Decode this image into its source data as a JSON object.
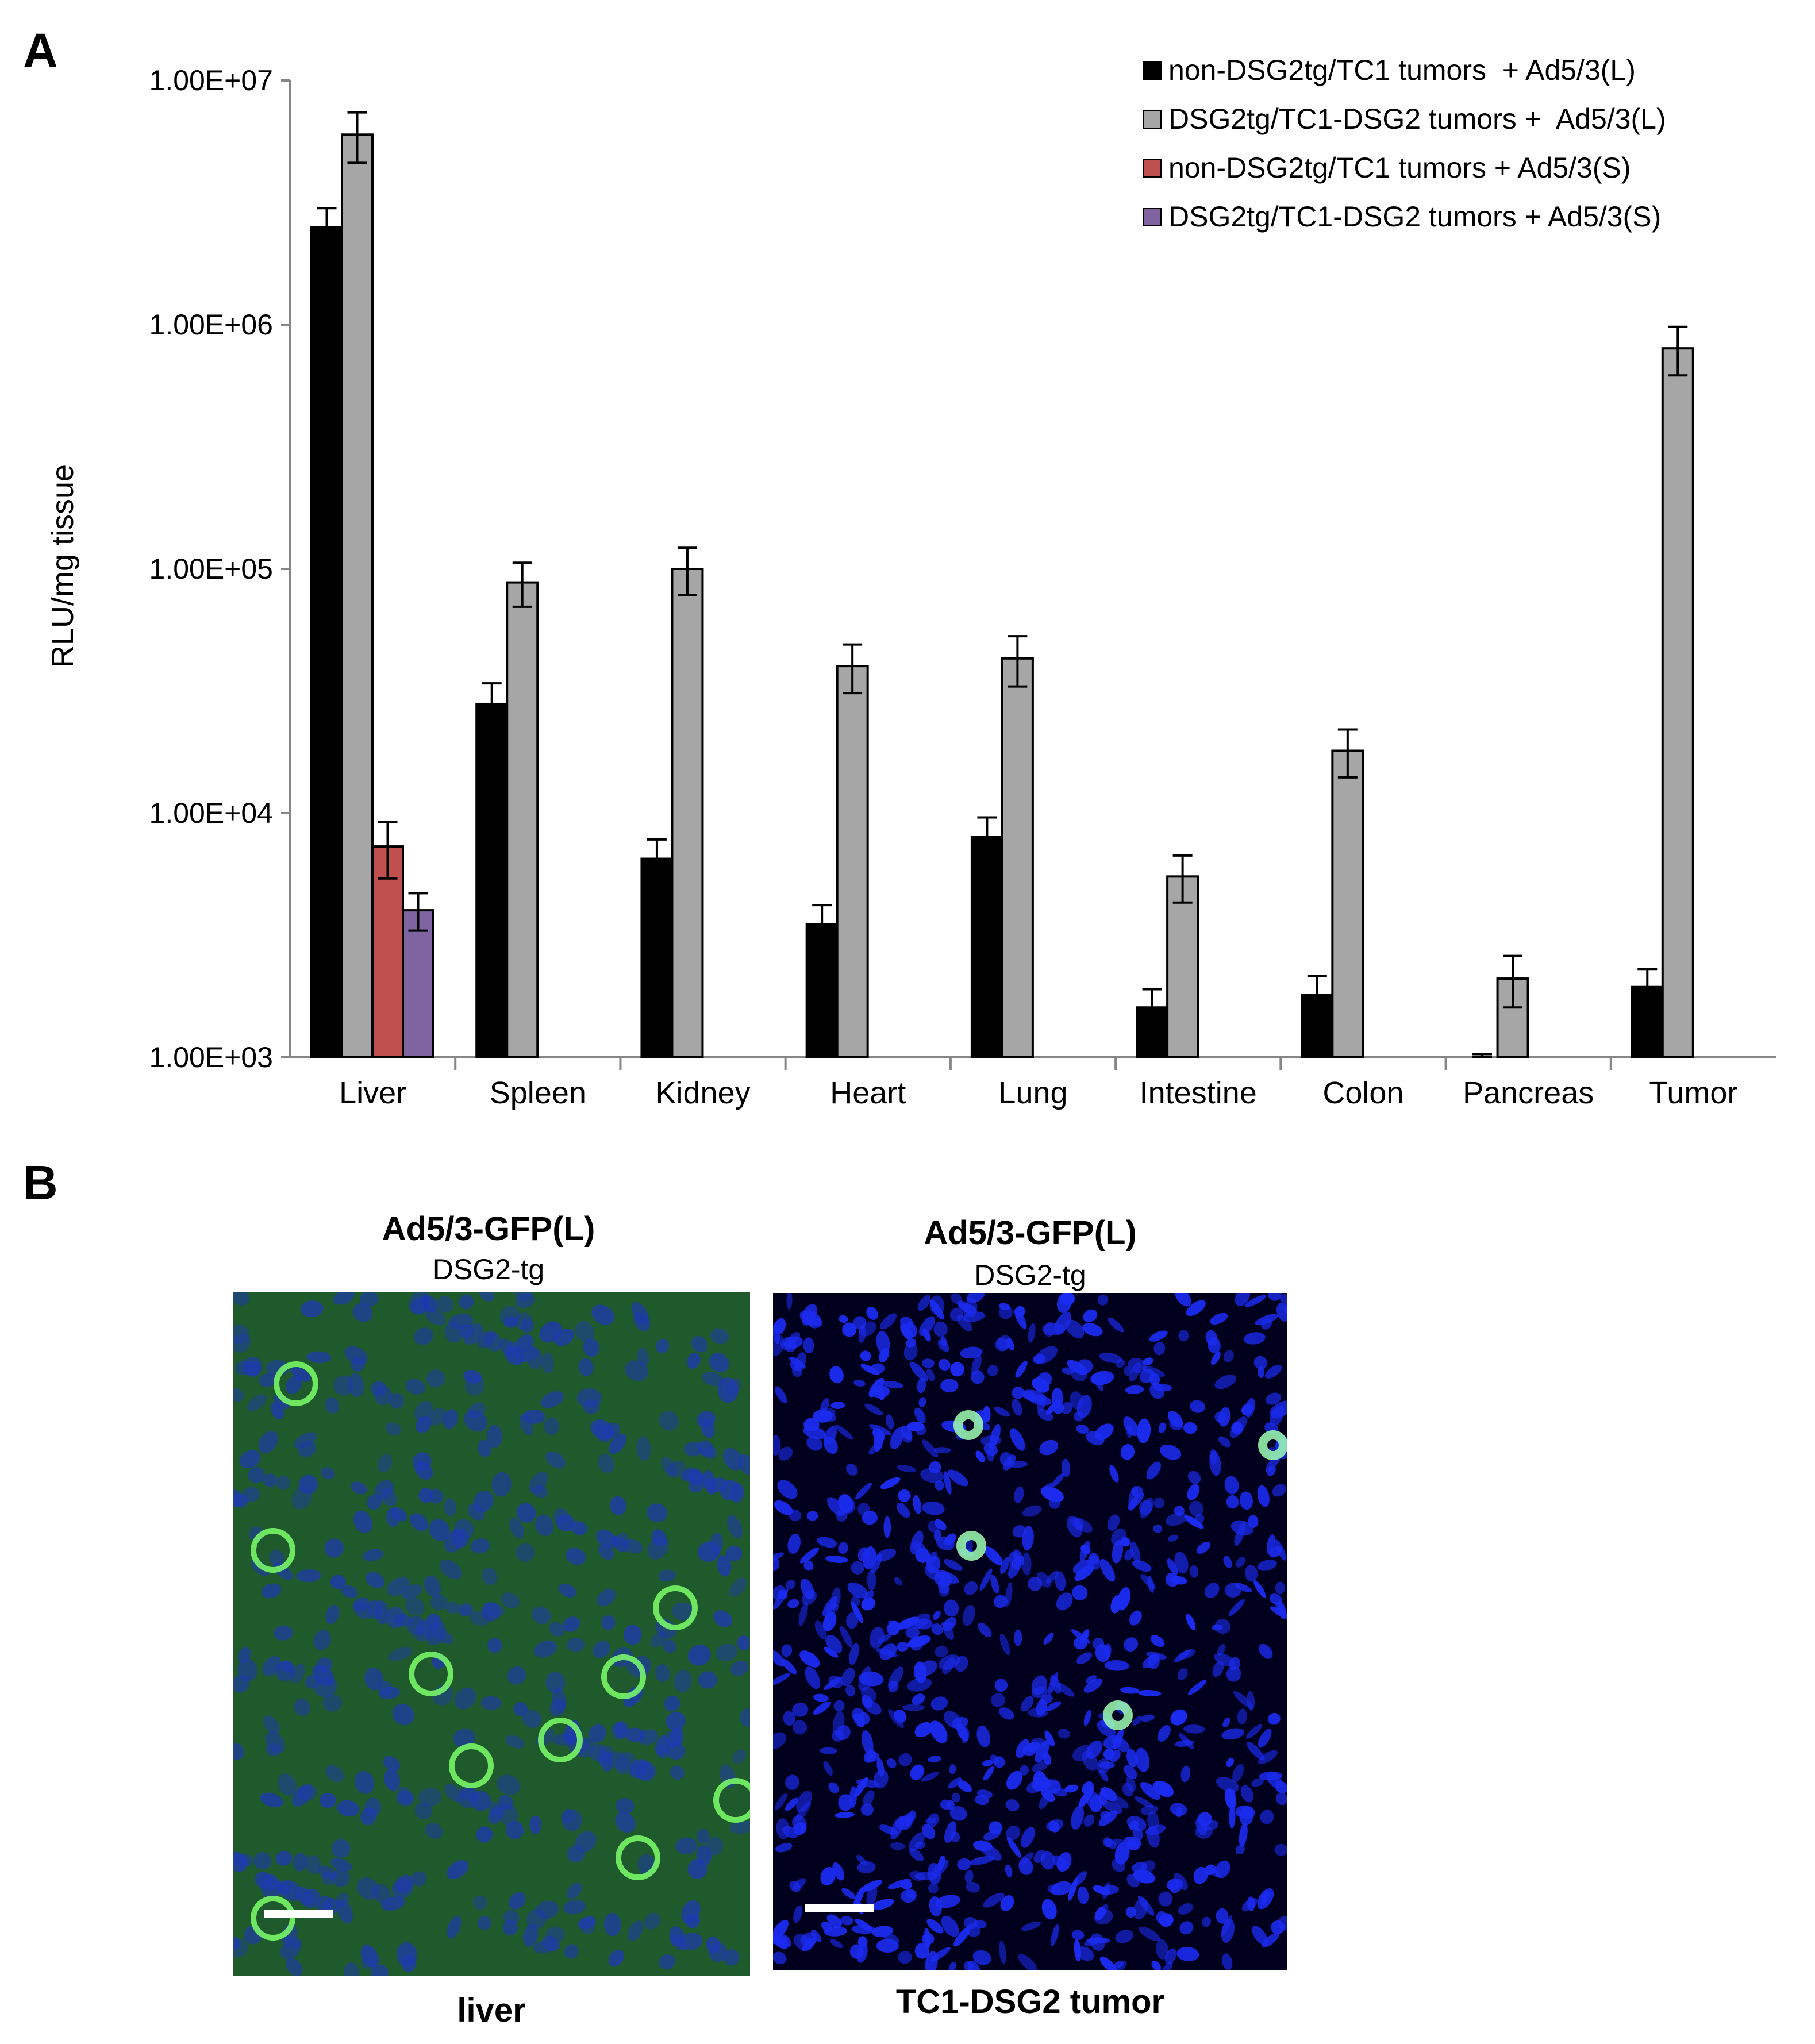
{
  "panel_a": {
    "letter": "A"
  },
  "panel_b": {
    "letter": "B",
    "images": [
      {
        "title": "Ad5/3-GFP(L)",
        "subtitle": "DSG2-tg",
        "caption": "liver",
        "image_name": "liver-fluorescence-micrograph",
        "background": "#1f5a2c",
        "nuclei_color": "#1e3ab0",
        "signal_color": "#7dff6a"
      },
      {
        "title": "Ad5/3-GFP(L)",
        "subtitle": "DSG2-tg",
        "caption": "TC1-DSG2 tumor",
        "image_name": "tumor-fluorescence-micrograph",
        "background": "#00001e",
        "nuclei_color": "#1b2bf0",
        "signal_color": "#9dffb0"
      }
    ]
  },
  "chart_data": {
    "type": "bar",
    "title": "",
    "xlabel": "",
    "ylabel": "RLU/mg tissue",
    "yscale": "log",
    "ylim": [
      1000,
      10000000
    ],
    "yticks": [
      "1.00E+03",
      "1.00E+04",
      "1.00E+05",
      "1.00E+06",
      "1.00E+07"
    ],
    "grid": false,
    "legend_position": "top-right",
    "categories": [
      "Liver",
      "Spleen",
      "Kidney",
      "Heart",
      "Lung",
      "Intestine",
      "Colon",
      "Pancreas",
      "Tumor"
    ],
    "series": [
      {
        "name": "non-DSG2tg/TC1 tumors  + Ad5/3(L)",
        "color": "#000000",
        "values": [
          2500000,
          28000,
          6500,
          3500,
          8000,
          1600,
          1800,
          1000,
          1950
        ],
        "errors": [
          500000,
          6000,
          1300,
          700,
          1600,
          300,
          350,
          30,
          350
        ]
      },
      {
        "name": "DSG2tg/TC1-DSG2 tumors +  Ad5/3(L)",
        "color": "#a6a6a6",
        "values": [
          6000000,
          88000,
          100000,
          40000,
          43000,
          5500,
          18000,
          2100,
          800000
        ],
        "errors": [
          1400000,
          18000,
          22000,
          9000,
          10000,
          1200,
          4000,
          500,
          180000
        ]
      },
      {
        "name": "non-DSG2tg/TC1 tumors + Ad5/3(S)",
        "color": "#c0504d",
        "values": [
          7300,
          null,
          null,
          null,
          null,
          null,
          null,
          null,
          null
        ],
        "errors": [
          1900,
          null,
          null,
          null,
          null,
          null,
          null,
          null,
          null
        ]
      },
      {
        "name": "DSG2tg/TC1-DSG2 tumors + Ad5/3(S)",
        "color": "#8064a2",
        "values": [
          4000,
          null,
          null,
          null,
          null,
          null,
          null,
          null,
          null
        ],
        "errors": [
          700,
          null,
          null,
          null,
          null,
          null,
          null,
          null,
          null
        ]
      }
    ]
  }
}
